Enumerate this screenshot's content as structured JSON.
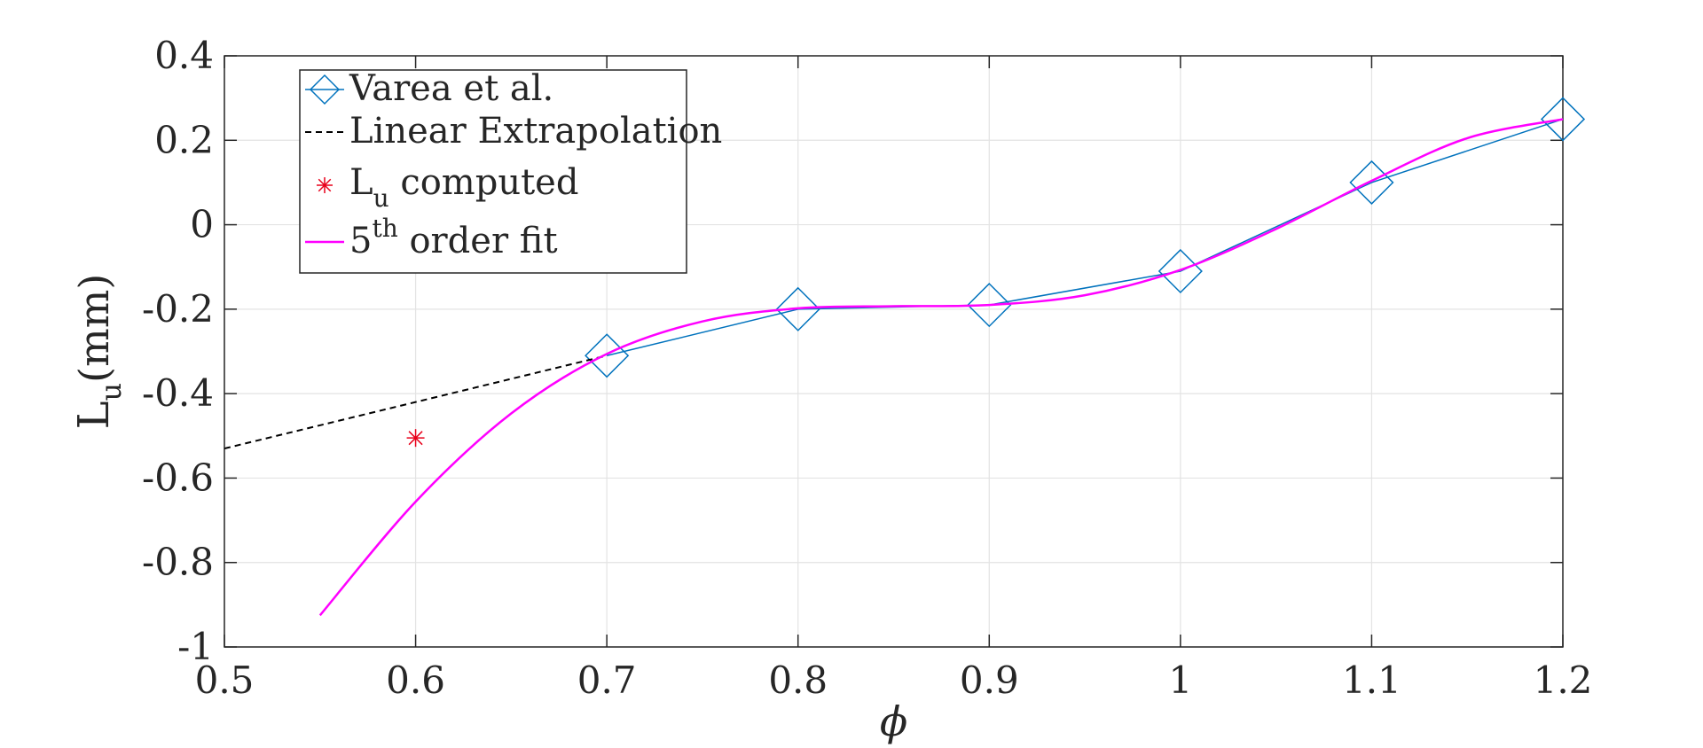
{
  "chart_data": {
    "type": "line",
    "xlabel": "ϕ",
    "ylabel_main": "L",
    "ylabel_sub": "u",
    "ylabel_unit": "(mm)",
    "xlim": [
      0.5,
      1.2
    ],
    "ylim": [
      -1,
      0.4
    ],
    "xticks": [
      0.5,
      0.6,
      0.7,
      0.8,
      0.9,
      1.0,
      1.1,
      1.2
    ],
    "xtick_labels": [
      "0.5",
      "0.6",
      "0.7",
      "0.8",
      "0.9",
      "1",
      "1.1",
      "1.2"
    ],
    "yticks": [
      -1,
      -0.8,
      -0.6,
      -0.4,
      -0.2,
      0,
      0.2,
      0.4
    ],
    "ytick_labels": [
      "-1",
      "-0.8",
      "-0.6",
      "-0.4",
      "-0.2",
      "0",
      "0.2",
      "0.4"
    ],
    "grid": true,
    "legend_position": "top-left",
    "series": [
      {
        "name": "Varea et al.",
        "style": "line-diamond",
        "color": "#0072BD",
        "x": [
          0.7,
          0.8,
          0.9,
          1.0,
          1.1,
          1.2
        ],
        "y": [
          -0.31,
          -0.2,
          -0.19,
          -0.11,
          0.1,
          0.25
        ]
      },
      {
        "name": "Linear Extrapolation",
        "style": "dashed",
        "color": "#000000",
        "x": [
          0.5,
          0.7
        ],
        "y": [
          -0.53,
          -0.31
        ]
      },
      {
        "name": "L_u computed",
        "style": "asterisk",
        "color": "#E8001A",
        "x": [
          0.6
        ],
        "y": [
          -0.505
        ]
      },
      {
        "name": "5th order fit",
        "style": "line",
        "color": "#FF00FF",
        "x": [
          0.55,
          0.6,
          0.65,
          0.7,
          0.75,
          0.8,
          0.85,
          0.9,
          0.95,
          1.0,
          1.05,
          1.1,
          1.15,
          1.2
        ],
        "y": [
          -0.925,
          -0.656,
          -0.447,
          -0.306,
          -0.229,
          -0.198,
          -0.193,
          -0.19,
          -0.167,
          -0.107,
          -0.01,
          0.104,
          0.205,
          0.25
        ]
      }
    ],
    "legend": {
      "entries": [
        {
          "main": "Varea et al.",
          "sup": "",
          "sub": "",
          "rest": ""
        },
        {
          "main": "Linear Extrapolation",
          "sup": "",
          "sub": "",
          "rest": ""
        },
        {
          "main": "L",
          "sup": "",
          "sub": "u",
          "rest": " computed"
        },
        {
          "main": "5",
          "sup": "th",
          "sub": "",
          "rest": " order fit"
        }
      ]
    }
  }
}
